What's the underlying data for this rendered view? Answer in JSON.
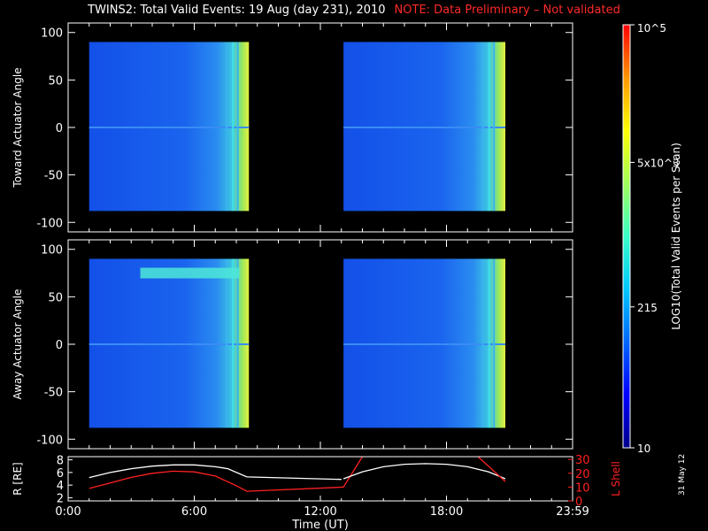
{
  "title": {
    "main": "TWINS2: Total Valid Events: 19 Aug (day 231), 2010",
    "note": "NOTE: Data Preliminary – Not validated"
  },
  "date_stamp": "31 May 12",
  "colors": {
    "background": "#000000",
    "axes": "#ffffff",
    "note": "#ff2a2a",
    "r_line": "#ffffff",
    "l_shell_line": "#ff2020"
  },
  "chart_data": [
    {
      "type": "heatmap",
      "panel": "toward",
      "ylabel": "Toward Actuator Angle",
      "ylim": [
        -110,
        110
      ],
      "yticks": [
        100,
        50,
        0,
        -50,
        -100
      ],
      "xlim": [
        0,
        24
      ],
      "angle_range": [
        -88,
        90
      ],
      "data_blocks": [
        {
          "start_hr": 1.0,
          "end_hr": 8.6
        },
        {
          "start_hr": 13.1,
          "end_hr": 20.8
        }
      ],
      "grid": false
    },
    {
      "type": "heatmap",
      "panel": "away",
      "ylabel": "Away Actuator Angle",
      "ylim": [
        -110,
        110
      ],
      "yticks": [
        100,
        50,
        0,
        -50,
        -100
      ],
      "xlim": [
        0,
        24
      ],
      "angle_range": [
        -88,
        90
      ],
      "data_blocks": [
        {
          "start_hr": 1.0,
          "end_hr": 8.6
        },
        {
          "start_hr": 13.1,
          "end_hr": 20.8
        }
      ],
      "grid": false
    },
    {
      "type": "line",
      "panel": "orbit",
      "xlabel": "Time (UT)",
      "xlim": [
        0,
        24
      ],
      "xticks": [
        {
          "hr": 0,
          "label": "0:00"
        },
        {
          "hr": 6,
          "label": "6:00"
        },
        {
          "hr": 12,
          "label": "12:00"
        },
        {
          "hr": 18,
          "label": "18:00"
        },
        {
          "hr": 24,
          "label": "23:59"
        }
      ],
      "left_axis": {
        "label": "R [RE]",
        "ylim": [
          1.5,
          8.5
        ],
        "ticks": [
          2,
          4,
          6,
          8
        ]
      },
      "right_axis": {
        "label": "L Shell",
        "ylim": [
          0,
          32
        ],
        "ticks": [
          0,
          10,
          20,
          30
        ]
      },
      "series": [
        {
          "axis": "left",
          "x": [
            1.0,
            2.0,
            3.0,
            4.0,
            5.0,
            6.0,
            7.0,
            7.6,
            8.5,
            13.0
          ],
          "y": [
            5.2,
            6.0,
            6.6,
            7.0,
            7.2,
            7.2,
            6.9,
            6.6,
            5.3,
            4.9
          ]
        },
        {
          "axis": "right",
          "x": [
            1.0,
            2.0,
            3.0,
            4.0,
            5.0,
            6.0,
            7.0,
            8.0,
            8.5,
            13.1,
            14.0
          ],
          "y": [
            9,
            13,
            17,
            20,
            21.5,
            21.0,
            18,
            11,
            7,
            10,
            32
          ]
        },
        {
          "axis": "left",
          "x": [
            13.1,
            14.0,
            15.0,
            16.0,
            17.0,
            18.0,
            19.0,
            20.0,
            20.8
          ],
          "y": [
            5.0,
            6.1,
            6.9,
            7.3,
            7.4,
            7.3,
            6.9,
            6.1,
            5.0
          ]
        },
        {
          "axis": "right",
          "x": [
            19.5,
            20.8
          ],
          "y": [
            32,
            14
          ]
        }
      ]
    },
    {
      "type": "heatmap",
      "panel": "colorbar",
      "label": "LOG10(Total Valid Events per Scan)",
      "scale": "log",
      "range": [
        10,
        100000
      ],
      "tick_labels": [
        "10",
        "215",
        "5x10^3",
        "10^5"
      ],
      "colors": [
        "#00008a",
        "#0000ff",
        "#0066ff",
        "#00c8ff",
        "#38ffc8",
        "#a0ff5a",
        "#ffff00",
        "#ff9600",
        "#ff0000"
      ]
    }
  ]
}
